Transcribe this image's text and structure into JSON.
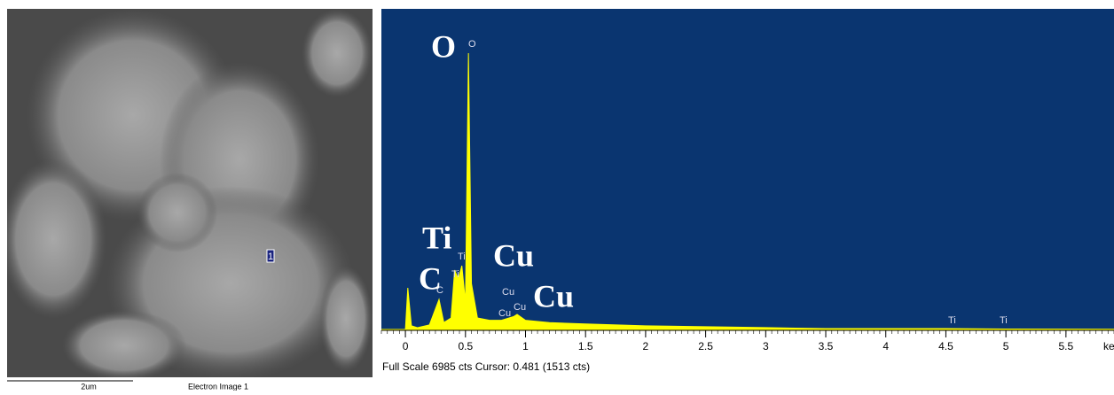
{
  "chart_data": {
    "type": "area",
    "x": [
      -0.2,
      0,
      0.02,
      0.05,
      0.1,
      0.2,
      0.28,
      0.32,
      0.38,
      0.41,
      0.44,
      0.47,
      0.5,
      0.525,
      0.55,
      0.6,
      0.7,
      0.8,
      0.9,
      0.93,
      1.0,
      1.2,
      1.5,
      2,
      2.5,
      3,
      3.5,
      4.5,
      5,
      5.9
    ],
    "values": [
      0,
      0,
      907,
      80,
      40,
      100,
      656,
      150,
      250,
      1293,
      1100,
      1389,
      600,
      6020,
      1000,
      250,
      200,
      200,
      280,
      328,
      200,
      150,
      120,
      80,
      60,
      40,
      20,
      20,
      10,
      5
    ],
    "color": "#ffff00",
    "background": "#0a3570",
    "xlim": [
      -0.2,
      5.9
    ],
    "ylim": [
      0,
      6985
    ],
    "xticks": [
      0,
      0.5,
      1,
      1.5,
      2,
      2.5,
      3,
      3.5,
      4,
      4.5,
      5,
      5.5
    ],
    "xlabel": "keV",
    "footer": "Full Scale 6985 cts Cursor: 0.481  (1513 cts)",
    "peak_labels": [
      "O",
      "C",
      "Ti",
      "Ti",
      "Cu",
      "Cu",
      "Cu",
      "Ti",
      "Ti"
    ],
    "element_labels": [
      "O",
      "Ti",
      "C",
      "Cu",
      "Cu"
    ]
  },
  "image": {
    "scale_bar": "2um",
    "caption": "Electron Image 1",
    "marker": "1"
  }
}
